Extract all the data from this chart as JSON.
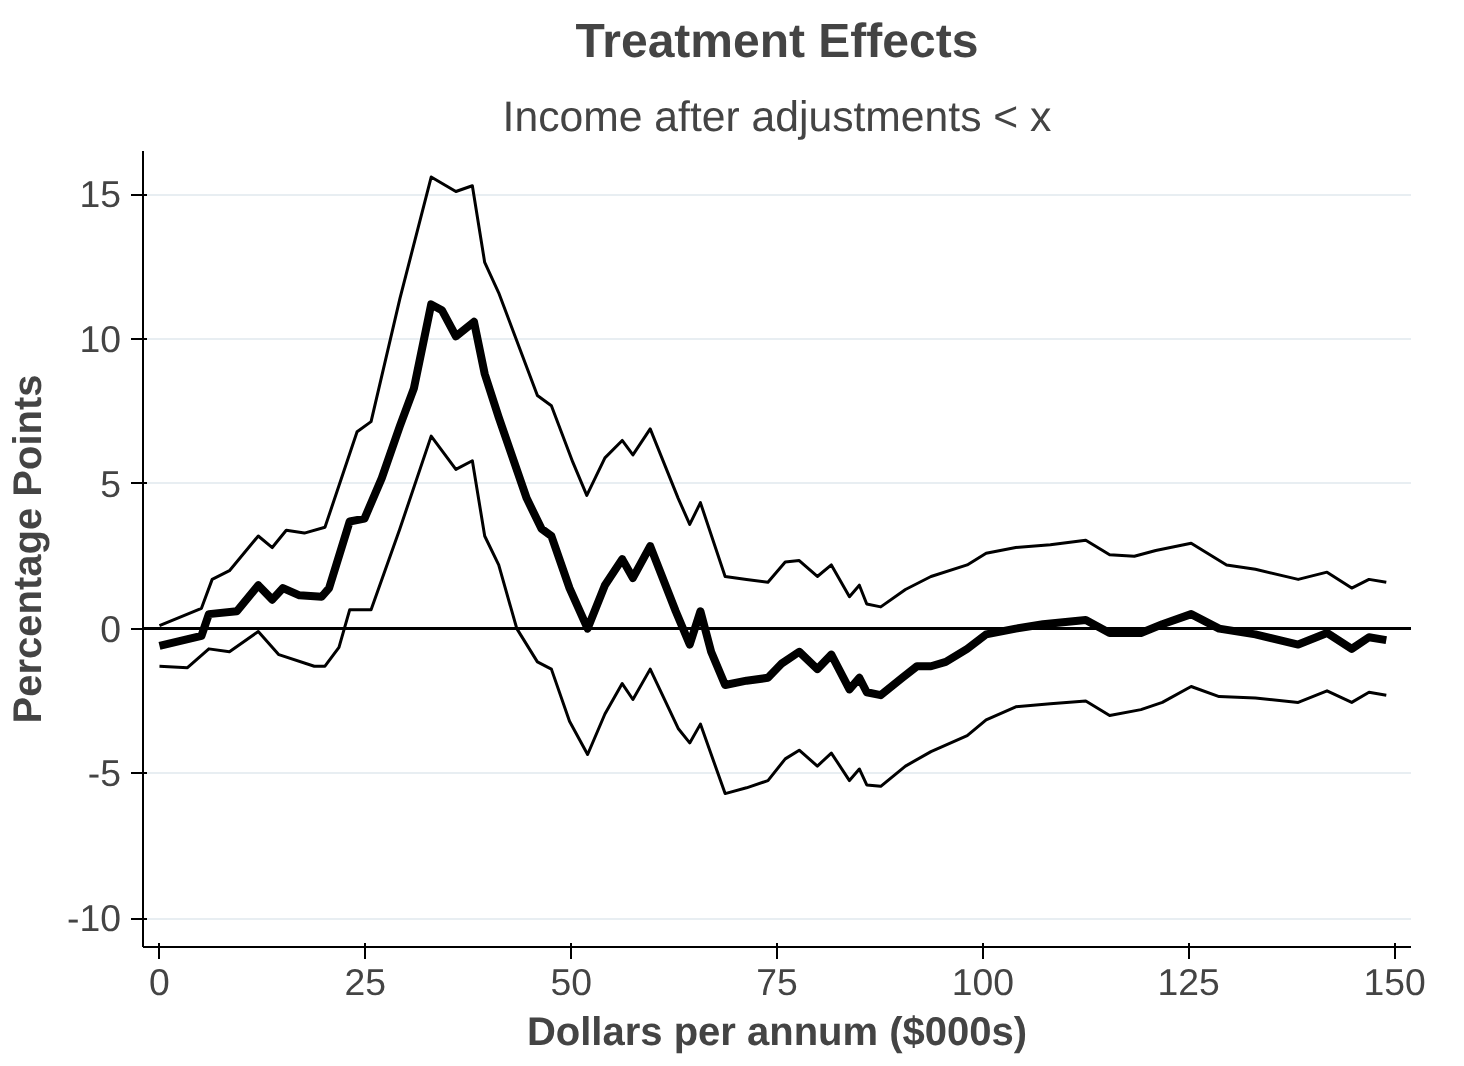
{
  "chart_data": {
    "type": "line",
    "title": "Treatment Effects",
    "subtitle": "Income after adjustments < x",
    "xlabel": "Dollars per annum ($000s)",
    "ylabel": "Percentage Points",
    "xlim": [
      -2,
      152
    ],
    "ylim": [
      -11,
      16.5
    ],
    "xticks": [
      0,
      25,
      50,
      75,
      100,
      125,
      150
    ],
    "yticks": [
      -10,
      -5,
      0,
      5,
      10,
      15
    ],
    "grid": "y",
    "marker": "none",
    "line_style": "solid",
    "ref_lines": [
      {
        "axis": "y",
        "value": 0,
        "color": "#000000"
      }
    ],
    "series": [
      {
        "color": "#000000",
        "x": [
          0,
          5.1,
          6,
          9.4,
          12,
          13.7,
          15,
          17,
          19.7,
          20.6,
          23.1,
          24.9,
          27,
          29.2,
          30.9,
          33,
          34.3,
          36,
          38.2,
          39.5,
          41.2,
          44.6,
          46.4,
          47.6,
          49.8,
          52,
          54.1,
          56.2,
          57.5,
          59.6,
          62.7,
          64.4,
          65.7,
          67,
          68.7,
          71.3,
          73.9,
          75.6,
          77.7,
          79.9,
          81.6,
          83.8,
          85,
          85.9,
          87.6,
          90.2,
          92,
          93.7,
          95.5,
          98.1,
          100.4,
          104,
          107.3,
          112.5,
          115.4,
          119.2,
          121.8,
          125.3,
          128.7,
          133.1,
          138.3,
          141.8,
          144.8,
          146.9,
          149
        ],
        "values": [
          -0.6,
          -0.25,
          0.5,
          0.6,
          1.5,
          1.0,
          1.4,
          1.15,
          1.1,
          1.4,
          3.7,
          3.8,
          5.2,
          7.0,
          8.3,
          11.2,
          11.0,
          10.1,
          10.6,
          8.8,
          7.3,
          4.5,
          3.45,
          3.2,
          1.4,
          0,
          1.5,
          2.4,
          1.75,
          2.85,
          0.6,
          -0.55,
          0.6,
          -0.8,
          -1.95,
          -1.8,
          -1.7,
          -1.2,
          -0.8,
          -1.4,
          -0.9,
          -2.1,
          -1.7,
          -2.2,
          -2.3,
          -1.7,
          -1.3,
          -1.3,
          -1.15,
          -0.7,
          -0.2,
          0.0,
          0.15,
          0.3,
          -0.15,
          -0.15,
          0.15,
          0.5,
          0,
          -0.2,
          -0.55,
          -0.15,
          -0.7,
          -0.3,
          -0.4
        ]
      },
      {
        "color": "#000000",
        "x": [
          0,
          5.1,
          6.4,
          8.5,
          12,
          13.7,
          15.4,
          17.6,
          20.1,
          24,
          25.7,
          29.2,
          33,
          36,
          38,
          39.5,
          41.2,
          45.9,
          47.6,
          50.2,
          51.9,
          54.1,
          56.2,
          57.5,
          59.6,
          63,
          64.4,
          65.7,
          68.7,
          71.3,
          73.9,
          76,
          77.7,
          79.9,
          81.6,
          83.8,
          85,
          85.9,
          87.6,
          90.6,
          93.7,
          98.1,
          100.4,
          104,
          108.2,
          112.5,
          115.4,
          118.4,
          121,
          125.3,
          129.6,
          133.1,
          138.3,
          141.8,
          144.8,
          146.9,
          149
        ],
        "values": [
          0.1,
          0.7,
          1.7,
          2.0,
          3.2,
          2.8,
          3.4,
          3.3,
          3.5,
          6.8,
          7.15,
          11.4,
          15.6,
          15.1,
          15.3,
          12.65,
          11.6,
          8.05,
          7.7,
          5.75,
          4.6,
          5.9,
          6.5,
          6.0,
          6.9,
          4.5,
          3.6,
          4.35,
          1.8,
          1.7,
          1.6,
          2.3,
          2.35,
          1.8,
          2.2,
          1.1,
          1.5,
          0.85,
          0.75,
          1.35,
          1.8,
          2.2,
          2.6,
          2.8,
          2.9,
          3.05,
          2.55,
          2.5,
          2.7,
          2.95,
          2.2,
          2.05,
          1.7,
          1.95,
          1.4,
          1.7,
          1.6
        ]
      },
      {
        "color": "#000000",
        "x": [
          0,
          3.4,
          6,
          8.5,
          12,
          14.5,
          18.8,
          20.1,
          21.8,
          23.1,
          25.7,
          29.2,
          33,
          36,
          38,
          39.5,
          41.2,
          43.4,
          45.9,
          47.6,
          49.8,
          52,
          54.1,
          56.2,
          57.5,
          59.6,
          63,
          64.4,
          65.7,
          68.7,
          71.3,
          73.9,
          76,
          77.7,
          79.9,
          81.6,
          83.8,
          85,
          85.9,
          87.6,
          90.6,
          93.7,
          98.1,
          100.4,
          104,
          108.2,
          112.5,
          115.4,
          119.2,
          121.8,
          125.3,
          128.7,
          133.1,
          138.3,
          141.8,
          144.8,
          146.9,
          149
        ],
        "values": [
          -1.3,
          -1.35,
          -0.7,
          -0.8,
          -0.1,
          -0.9,
          -1.3,
          -1.3,
          -0.65,
          0.65,
          0.65,
          3.45,
          6.65,
          5.5,
          5.8,
          3.2,
          2.2,
          0,
          -1.15,
          -1.4,
          -3.2,
          -4.35,
          -2.95,
          -1.9,
          -2.45,
          -1.4,
          -3.45,
          -3.95,
          -3.3,
          -5.7,
          -5.5,
          -5.25,
          -4.5,
          -4.2,
          -4.75,
          -4.3,
          -5.25,
          -4.85,
          -5.4,
          -5.45,
          -4.75,
          -4.25,
          -3.7,
          -3.15,
          -2.7,
          -2.6,
          -2.5,
          -3.0,
          -2.8,
          -2.55,
          -2.0,
          -2.35,
          -2.4,
          -2.55,
          -2.15,
          -2.55,
          -2.2,
          -2.3
        ]
      }
    ]
  }
}
